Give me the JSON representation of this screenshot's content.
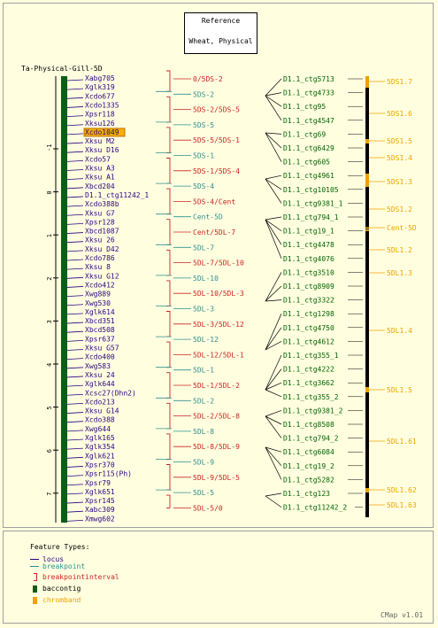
{
  "title_line1": "Reference",
  "title_line2": "Wheat, Physical",
  "map_name": "Ta-Physical-Gill-5D",
  "credit": "CMap v1.01",
  "colors": {
    "locus": "#2a0080",
    "breakpoint": "#2f8f8f",
    "interval": "#cc2222",
    "baccontig": "#0b5e18",
    "contig_label": "#006400",
    "chromband": "#f0a000",
    "highlight_bg": "#f3b000"
  },
  "axis_ticks": [
    "-1",
    "0",
    "1",
    "2",
    "3",
    "4",
    "5",
    "6",
    "7"
  ],
  "loci": [
    "Xabg705",
    "Xglk319",
    "Xcdo677",
    "Xcdo1335",
    "Xpsr118",
    "Xksu126",
    "Xcdo1049",
    "Xksu M2",
    "Xksu D16",
    "Xcdo57",
    "Xksu A3",
    "Xksu A1",
    "Xbcd204",
    "D1.1_ctg11242_1",
    "Xcdo388b",
    "Xksu G7",
    "Xpsr128",
    "Xbcd1087",
    "Xksu 26",
    "Xksu D42",
    "Xcdo786",
    "Xksu 8",
    "Xksu G12",
    "Xcdo412",
    "Xwg889",
    "Xwg530",
    "Xglk614",
    "Xbcd351",
    "Xbcd508",
    "Xpsr637",
    "Xksu G57",
    "Xcdo400",
    "Xwg583",
    "Xksu 24",
    "Xglk644",
    "Xcsc27(Dhn2)",
    "Xcdo213",
    "Xksu G14",
    "Xcdo388",
    "Xwg644",
    "Xglk165",
    "Xglk354",
    "Xglk621",
    "Xpsr370",
    "Xpsr115(Ph)",
    "Xpsr79",
    "Xglk651",
    "Xpsr145",
    "Xabc309",
    "Xmwg602"
  ],
  "highlighted_locus": "Xcdo1049",
  "breakpoint_labels": [
    {
      "text": "0/5DS-2",
      "kind": "interval"
    },
    {
      "text": "5DS-2",
      "kind": "breakpoint"
    },
    {
      "text": "5DS-2/5DS-5",
      "kind": "interval"
    },
    {
      "text": "5DS-5",
      "kind": "breakpoint"
    },
    {
      "text": "5DS-5/5DS-1",
      "kind": "interval"
    },
    {
      "text": "5DS-1",
      "kind": "breakpoint"
    },
    {
      "text": "5DS-1/5DS-4",
      "kind": "interval"
    },
    {
      "text": "5DS-4",
      "kind": "breakpoint"
    },
    {
      "text": "5DS-4/Cent",
      "kind": "interval"
    },
    {
      "text": "Cent-5D",
      "kind": "breakpoint"
    },
    {
      "text": "Cent/5DL-7",
      "kind": "interval"
    },
    {
      "text": "5DL-7",
      "kind": "breakpoint"
    },
    {
      "text": "5DL-7/5DL-10",
      "kind": "interval"
    },
    {
      "text": "5DL-10",
      "kind": "breakpoint"
    },
    {
      "text": "5DL-10/5DL-3",
      "kind": "interval"
    },
    {
      "text": "5DL-3",
      "kind": "breakpoint"
    },
    {
      "text": "5DL-3/5DL-12",
      "kind": "interval"
    },
    {
      "text": "5DL-12",
      "kind": "breakpoint"
    },
    {
      "text": "5DL-12/5DL-1",
      "kind": "interval"
    },
    {
      "text": "5DL-1",
      "kind": "breakpoint"
    },
    {
      "text": "5DL-1/5DL-2",
      "kind": "interval"
    },
    {
      "text": "5DL-2",
      "kind": "breakpoint"
    },
    {
      "text": "5DL-2/5DL-8",
      "kind": "interval"
    },
    {
      "text": "5DL-8",
      "kind": "breakpoint"
    },
    {
      "text": "5DL-8/5DL-9",
      "kind": "interval"
    },
    {
      "text": "5DL-9",
      "kind": "breakpoint"
    },
    {
      "text": "5DL-9/5DL-5",
      "kind": "interval"
    },
    {
      "text": "5DL-5",
      "kind": "breakpoint"
    },
    {
      "text": "5DL-5/0",
      "kind": "interval"
    }
  ],
  "contigs": [
    "D1.1_ctg5713",
    "D1.1_ctg4733",
    "D1.1_ctg95",
    "D1.1_ctg4547",
    "D1.1_ctg69",
    "D1.1_ctg6429",
    "D1.1_ctg605",
    "D1.1_ctg4961",
    "D1.1_ctg10105",
    "D1.1_ctg9381_1",
    "D1.1_ctg794_1",
    "D1.1_ctg19_1",
    "D1.1_ctg4478",
    "D1.1_ctg4076",
    "D1.1_ctg3510",
    "D1.1_ctg8909",
    "D1.1_ctg3322",
    "D1.1_ctg1298",
    "D1.1_ctg4750",
    "D1.1_ctg4612",
    "D1.1_ctg355_1",
    "D1.1_ctg4222",
    "D1.1_ctg3662",
    "D1.1_ctg355_2",
    "D1.1_ctg9381_2",
    "D1.1_ctg8508",
    "D1.1_ctg794_2",
    "D1.1_ctg6084",
    "D1.1_ctg19_2",
    "D1.1_ctg5282",
    "D1.1_ctg123",
    "D1.1_ctg11242_2"
  ],
  "chrombands": [
    "5DS1.7",
    "5DS1.6",
    "5DS1.5",
    "5DS1.4",
    "5DS1.3",
    "5DS1.2",
    "Cent-5D",
    "5DL1.2",
    "5DL1.3",
    "5DL1.4",
    "5DL1.5",
    "5DL1.61",
    "5DL1.62",
    "5DL1.63"
  ],
  "legend": {
    "title": "Feature Types:",
    "items": [
      {
        "label": "locus",
        "icon": "line-icon"
      },
      {
        "label": "breakpoint",
        "icon": "line-icon"
      },
      {
        "label": "breakpointinterval",
        "icon": "bracket-icon"
      },
      {
        "label": "baccontig",
        "icon": "box-icon"
      },
      {
        "label": "chromband",
        "icon": "box-icon"
      }
    ]
  }
}
